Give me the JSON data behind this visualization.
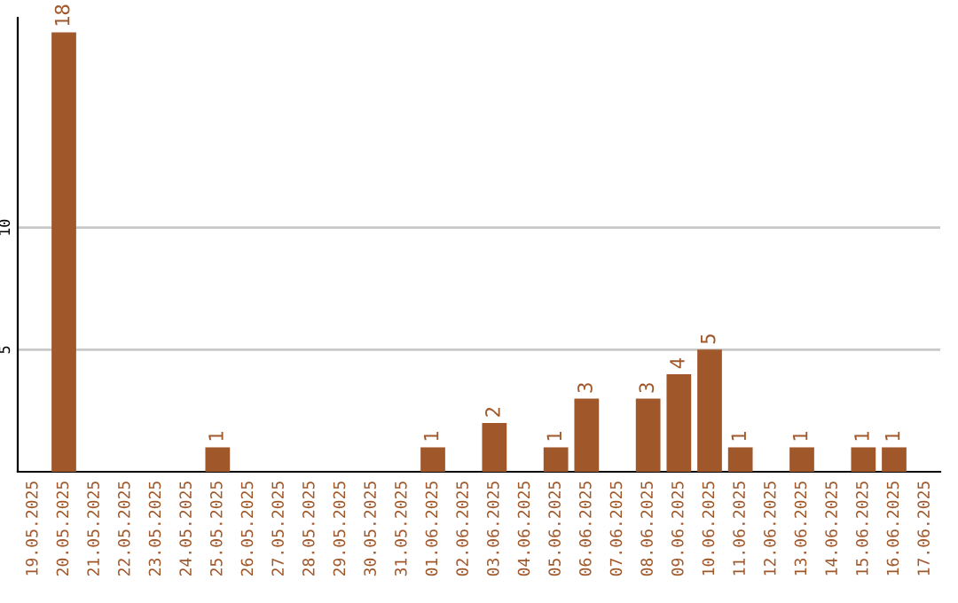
{
  "chart_data": {
    "type": "bar",
    "categories": [
      "19.05.2025",
      "20.05.2025",
      "21.05.2025",
      "22.05.2025",
      "23.05.2025",
      "24.05.2025",
      "25.05.2025",
      "26.05.2025",
      "27.05.2025",
      "28.05.2025",
      "29.05.2025",
      "30.05.2025",
      "31.05.2025",
      "01.06.2025",
      "02.06.2025",
      "03.06.2025",
      "04.06.2025",
      "05.06.2025",
      "06.06.2025",
      "07.06.2025",
      "08.06.2025",
      "09.06.2025",
      "10.06.2025",
      "11.06.2025",
      "12.06.2025",
      "13.06.2025",
      "14.06.2025",
      "15.06.2025",
      "16.06.2025",
      "17.06.2025"
    ],
    "values": [
      0,
      18,
      0,
      0,
      0,
      0,
      1,
      0,
      0,
      0,
      0,
      0,
      0,
      1,
      0,
      2,
      0,
      1,
      3,
      0,
      3,
      4,
      5,
      1,
      0,
      1,
      0,
      1,
      1,
      0
    ],
    "value_labels": [
      null,
      "18",
      null,
      null,
      null,
      null,
      "1",
      null,
      null,
      null,
      null,
      null,
      null,
      "1",
      null,
      "2",
      null,
      "1",
      "3",
      null,
      "3",
      "4",
      "5",
      "1",
      null,
      "1",
      null,
      "1",
      "1",
      null
    ],
    "color": "#a0572a",
    "ylim": [
      0,
      18.6
    ],
    "yticks": [
      5,
      10
    ],
    "grid": "y"
  }
}
